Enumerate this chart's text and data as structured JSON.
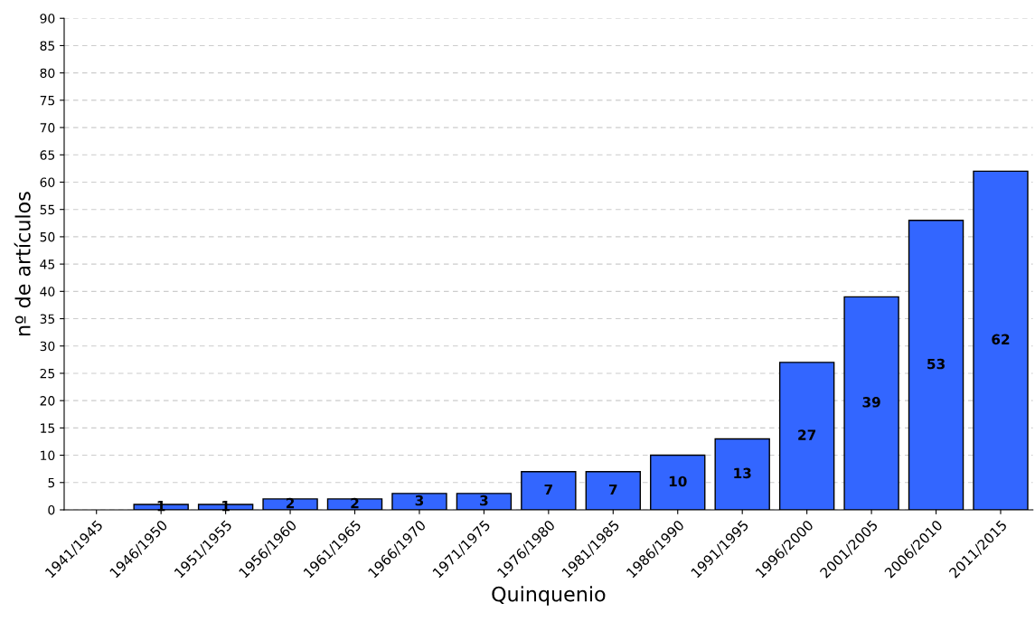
{
  "chart_data": {
    "type": "bar",
    "xlabel": "Quinquenio",
    "ylabel": "nº de artículos",
    "categories": [
      "1941/1945",
      "1946/1950",
      "1951/1955",
      "1956/1960",
      "1961/1965",
      "1966/1970",
      "1971/1975",
      "1976/1980",
      "1981/1985",
      "1986/1990",
      "1991/1995",
      "1996/2000",
      "2001/2005",
      "2006/2010",
      "2011/2015"
    ],
    "values": [
      0,
      1,
      1,
      2,
      2,
      3,
      3,
      7,
      7,
      10,
      13,
      27,
      39,
      53,
      62
    ],
    "value_labels": [
      null,
      "1",
      "1",
      "2",
      "2",
      "3",
      "3",
      "7",
      "7",
      "10",
      "13",
      "27",
      "39",
      "53",
      "62"
    ],
    "color": "#3366ff",
    "ylim": [
      0,
      90
    ],
    "yticks": [
      0,
      5,
      10,
      15,
      20,
      25,
      30,
      35,
      40,
      45,
      50,
      55,
      60,
      65,
      70,
      75,
      80,
      85,
      90
    ],
    "grid": "y"
  }
}
